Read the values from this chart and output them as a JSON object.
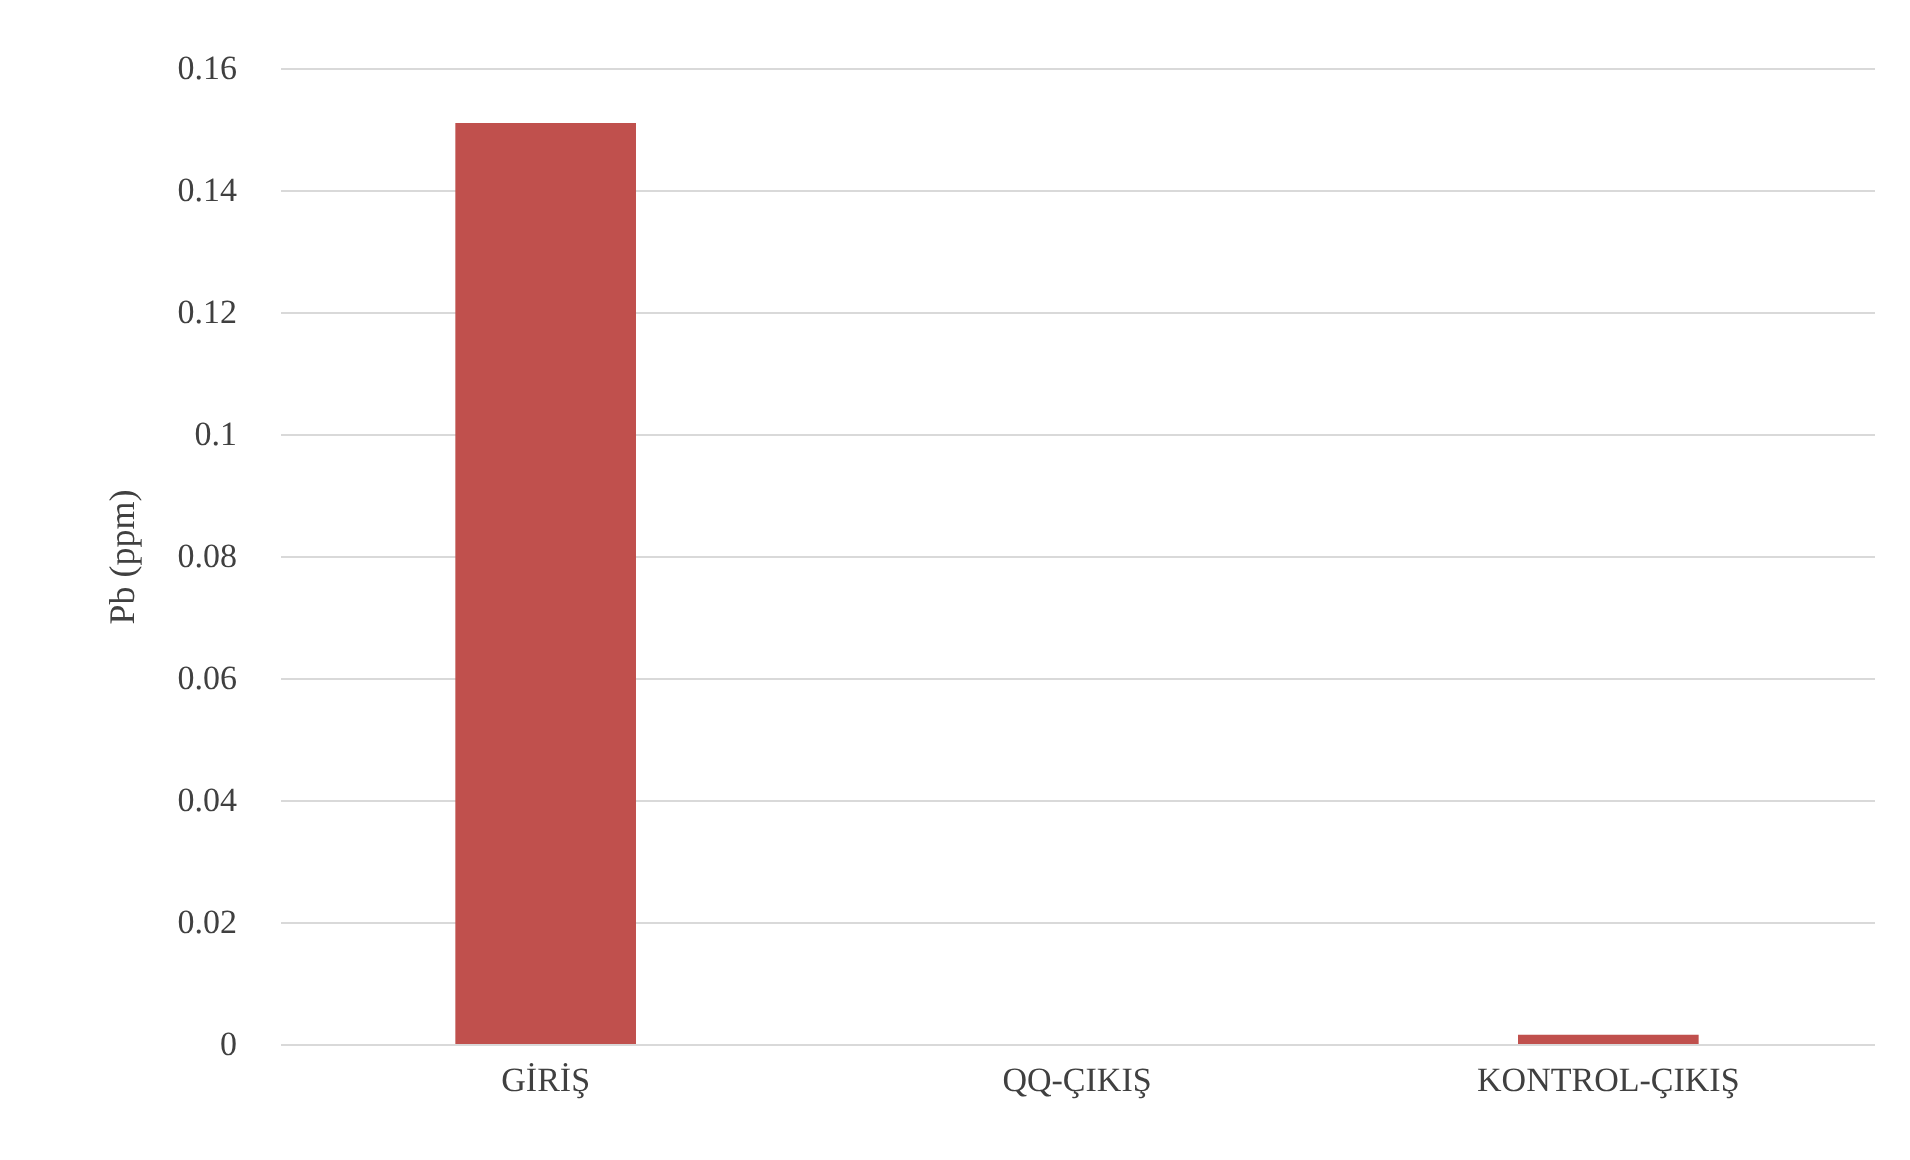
{
  "chart_data": {
    "type": "bar",
    "ylabel": "Pb (ppm)",
    "categories": [
      "GİRİŞ",
      "QQ-ÇIKIŞ",
      "KONTROL-ÇIKIŞ"
    ],
    "values": [
      0.151,
      0,
      0.0015
    ],
    "color": "#c0504d",
    "ylim": [
      0,
      0.16
    ],
    "yticks": [
      0,
      0.02,
      0.04,
      0.06,
      0.08,
      0.1,
      0.12,
      0.14,
      0.16
    ],
    "grid": "y"
  }
}
